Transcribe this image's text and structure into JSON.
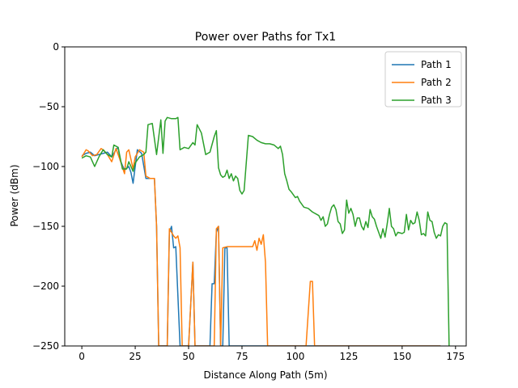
{
  "chart_data": {
    "type": "line",
    "title": "Power over Paths for Tx1",
    "xlabel": "Distance Along Path (5m)",
    "ylabel": "Power (dBm)",
    "xlim": [
      -8,
      180
    ],
    "ylim": [
      -250,
      0
    ],
    "xticks": [
      0,
      25,
      50,
      75,
      100,
      125,
      150,
      175
    ],
    "yticks": [
      0,
      -50,
      -100,
      -150,
      -200,
      -250
    ],
    "grid": false,
    "legend": "top-right",
    "series": [
      {
        "name": "Path 1",
        "color": "#1f77b4",
        "x": [
          0,
          2,
          4,
          6,
          8,
          10,
          12,
          14,
          16,
          17,
          18,
          20,
          22,
          23,
          24,
          26,
          28,
          30,
          32,
          34,
          35,
          36,
          38,
          40,
          41,
          42,
          43,
          44,
          46,
          47,
          48,
          50,
          52,
          53,
          54,
          56,
          58,
          60,
          61,
          62,
          63,
          64,
          65,
          66,
          67,
          68,
          69,
          70,
          80,
          90,
          100,
          110,
          120,
          130,
          140,
          150,
          160,
          168
        ],
        "y": [
          -91,
          -89,
          -88,
          -91,
          -90,
          -89,
          -88,
          -92,
          -86,
          -84,
          -95,
          -103,
          -100,
          -105,
          -114,
          -86,
          -89,
          -110,
          -110,
          -110,
          -150,
          -250,
          -250,
          -250,
          -155,
          -150,
          -168,
          -167,
          -250,
          -250,
          -250,
          -250,
          -180,
          -250,
          -250,
          -250,
          -250,
          -250,
          -198,
          -198,
          -155,
          -150,
          -250,
          -250,
          -168,
          -168,
          -250,
          -250,
          -250,
          -250,
          -250,
          -250,
          -250,
          -250,
          -250,
          -250,
          -250,
          -250
        ]
      },
      {
        "name": "Path 2",
        "color": "#ff7f0e",
        "x": [
          0,
          2,
          3,
          5,
          7,
          9,
          10,
          12,
          14,
          16,
          18,
          20,
          21,
          22,
          24,
          25,
          27,
          29,
          30,
          32,
          34,
          35,
          36,
          38,
          40,
          41,
          42,
          43,
          44,
          45,
          46,
          47,
          48,
          50,
          52,
          53,
          54,
          56,
          58,
          60,
          62,
          63,
          64,
          65,
          66,
          68,
          70,
          72,
          74,
          76,
          78,
          80,
          81,
          82,
          83,
          84,
          85,
          86,
          87,
          88,
          90,
          95,
          100,
          105,
          107,
          108,
          109,
          110,
          115,
          120,
          130,
          140,
          150,
          160,
          168
        ],
        "y": [
          -92,
          -86,
          -87,
          -91,
          -90,
          -85,
          -86,
          -90,
          -96,
          -85,
          -95,
          -106,
          -88,
          -86,
          -102,
          -92,
          -86,
          -88,
          -108,
          -110,
          -110,
          -150,
          -250,
          -250,
          -250,
          -152,
          -155,
          -158,
          -160,
          -158,
          -168,
          -250,
          -250,
          -250,
          -180,
          -250,
          -250,
          -250,
          -250,
          -250,
          -250,
          -152,
          -150,
          -250,
          -168,
          -167,
          -167,
          -167,
          -167,
          -167,
          -167,
          -167,
          -162,
          -170,
          -160,
          -165,
          -157,
          -180,
          -250,
          -250,
          -250,
          -250,
          -250,
          -250,
          -196,
          -196,
          -250,
          -250,
          -250,
          -250,
          -250,
          -250,
          -250,
          -250,
          -250
        ]
      },
      {
        "name": "Path 3",
        "color": "#2ca02c",
        "x": [
          0,
          2,
          4,
          6,
          8,
          10,
          12,
          14,
          15,
          17,
          19,
          21,
          22,
          23,
          24,
          25,
          27,
          29,
          30,
          31,
          33,
          35,
          37,
          38,
          39,
          40,
          42,
          44,
          45,
          46,
          48,
          50,
          52,
          53,
          54,
          56,
          58,
          60,
          62,
          63,
          64,
          65,
          66,
          67,
          68,
          69,
          70,
          71,
          72,
          73,
          74,
          75,
          76,
          78,
          80,
          82,
          84,
          86,
          88,
          90,
          92,
          93,
          94,
          95,
          96,
          97,
          98,
          100,
          101,
          102,
          104,
          106,
          108,
          110,
          111,
          112,
          113,
          114,
          115,
          116,
          117,
          118,
          119,
          120,
          121,
          122,
          123,
          124,
          125,
          126,
          127,
          128,
          129,
          130,
          131,
          132,
          133,
          134,
          135,
          136,
          137,
          138,
          139,
          140,
          141,
          142,
          143,
          144,
          145,
          146,
          147,
          148,
          150,
          151,
          152,
          153,
          154,
          155,
          156,
          157,
          158,
          159,
          160,
          161,
          162,
          163,
          164,
          165,
          166,
          167,
          168,
          169,
          170,
          171,
          172
        ],
        "y": [
          -93,
          -91,
          -92,
          -100,
          -92,
          -86,
          -90,
          -92,
          -82,
          -84,
          -102,
          -102,
          -96,
          -100,
          -104,
          -97,
          -92,
          -90,
          -88,
          -65,
          -64,
          -90,
          -61,
          -89,
          -62,
          -59,
          -60,
          -60,
          -59,
          -86,
          -84,
          -85,
          -80,
          -82,
          -65,
          -72,
          -90,
          -88,
          -75,
          -70,
          -101,
          -107,
          -109,
          -108,
          -103,
          -110,
          -106,
          -112,
          -108,
          -110,
          -120,
          -123,
          -120,
          -74,
          -75,
          -78,
          -80,
          -81,
          -81,
          -82,
          -85,
          -83,
          -90,
          -106,
          -112,
          -119,
          -121,
          -126,
          -125,
          -129,
          -134,
          -135,
          -138,
          -140,
          -141,
          -145,
          -142,
          -150,
          -148,
          -140,
          -134,
          -132,
          -136,
          -146,
          -148,
          -156,
          -153,
          -128,
          -139,
          -135,
          -140,
          -150,
          -143,
          -143,
          -150,
          -153,
          -146,
          -151,
          -136,
          -142,
          -144,
          -150,
          -155,
          -160,
          -152,
          -159,
          -148,
          -135,
          -150,
          -152,
          -158,
          -155,
          -156,
          -155,
          -140,
          -153,
          -145,
          -148,
          -147,
          -138,
          -145,
          -157,
          -156,
          -158,
          -138,
          -145,
          -146,
          -155,
          -160,
          -157,
          -158,
          -150,
          -147,
          -148,
          -250
        ]
      }
    ]
  }
}
